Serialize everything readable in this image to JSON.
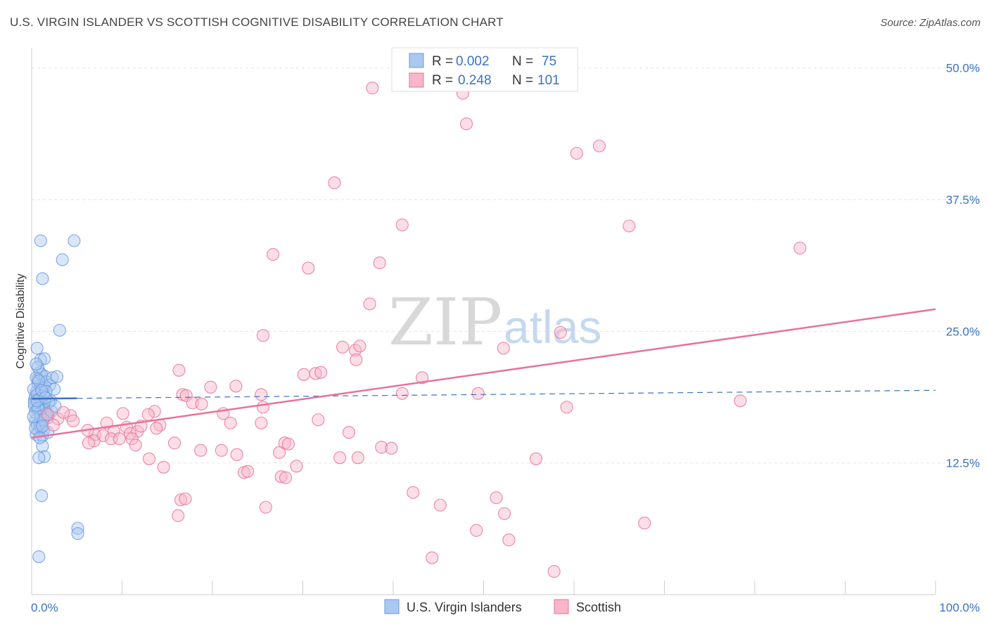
{
  "header": {
    "title": "U.S. VIRGIN ISLANDER VS SCOTTISH COGNITIVE DISABILITY CORRELATION CHART",
    "source": "Source: ZipAtlas.com"
  },
  "watermark": {
    "zip": "ZIP",
    "atlas": "atlas"
  },
  "legend_box": {
    "r_label": "R =",
    "n_label": "N =",
    "rows": [
      {
        "series": "U.S. Virgin Islanders",
        "r": "0.002",
        "n": "75",
        "color": "#aac8f0"
      },
      {
        "series": "Scottish",
        "r": "0.248",
        "n": "101",
        "color": "#f8b6c8"
      }
    ]
  },
  "bottom_legend": {
    "items": [
      {
        "label": "U.S. Virgin Islanders",
        "color": "#aac8f0"
      },
      {
        "label": "Scottish",
        "color": "#f8b6c8"
      }
    ]
  },
  "chart_data": {
    "type": "scatter",
    "title": "U.S. VIRGIN ISLANDER VS SCOTTISH COGNITIVE DISABILITY CORRELATION CHART",
    "xlabel": "",
    "ylabel": "Cognitive Disability",
    "xlim": [
      0,
      100
    ],
    "ylim": [
      0,
      51.25
    ],
    "x_tick_labels": [
      "0.0%",
      "100.0%"
    ],
    "y_ticks": [
      12.5,
      25.0,
      37.5,
      50.0
    ],
    "y_tick_labels": [
      "12.5%",
      "25.0%",
      "37.5%",
      "50.0%"
    ],
    "grid": true,
    "legend_position": "top-center",
    "series": [
      {
        "name": "U.S. Virgin Islanders",
        "color": "#6a9be0",
        "fill": "#aac8f0",
        "r": 0.002,
        "n": 75,
        "trend": {
          "x0": 0,
          "y0": 18.6,
          "x1": 100,
          "y1": 19.4,
          "solid_until": 5
        },
        "points": [
          [
            0.3,
            18.5
          ],
          [
            0.5,
            19.2
          ],
          [
            0.6,
            17.6
          ],
          [
            0.7,
            20.1
          ],
          [
            0.8,
            18.9
          ],
          [
            0.9,
            17.2
          ],
          [
            1.0,
            19.8
          ],
          [
            1.1,
            18.1
          ],
          [
            0.4,
            16.5
          ],
          [
            0.6,
            16.1
          ],
          [
            0.8,
            15.5
          ],
          [
            0.5,
            15.2
          ],
          [
            1.2,
            15.1
          ],
          [
            1.3,
            15.6
          ],
          [
            0.7,
            20.5
          ],
          [
            0.9,
            21.1
          ],
          [
            1.0,
            22.3
          ],
          [
            1.4,
            22.4
          ],
          [
            0.6,
            23.4
          ],
          [
            1.1,
            20.9
          ],
          [
            1.5,
            20.7
          ],
          [
            1.6,
            20.2
          ],
          [
            1.3,
            19.6
          ],
          [
            2.0,
            19.9
          ],
          [
            2.3,
            20.6
          ],
          [
            2.8,
            20.7
          ],
          [
            2.5,
            19.5
          ],
          [
            1.2,
            18.2
          ],
          [
            1.4,
            17.8
          ],
          [
            1.5,
            17.5
          ],
          [
            1.7,
            17.0
          ],
          [
            2.1,
            18.4
          ],
          [
            1.8,
            16.8
          ],
          [
            0.3,
            17.9
          ],
          [
            0.4,
            18.8
          ],
          [
            0.2,
            19.5
          ],
          [
            0.5,
            20.6
          ],
          [
            0.7,
            21.6
          ],
          [
            0.9,
            16.3
          ],
          [
            1.0,
            15.9
          ],
          [
            1.2,
            14.1
          ],
          [
            1.4,
            13.1
          ],
          [
            0.8,
            13.0
          ],
          [
            1.1,
            9.4
          ],
          [
            1.2,
            30.0
          ],
          [
            1.0,
            33.6
          ],
          [
            3.4,
            31.8
          ],
          [
            4.7,
            33.6
          ],
          [
            3.1,
            25.1
          ],
          [
            5.1,
            6.3
          ],
          [
            5.1,
            5.8
          ],
          [
            0.8,
            3.6
          ],
          [
            1.6,
            17.2
          ],
          [
            1.9,
            18.3
          ],
          [
            2.2,
            17.4
          ],
          [
            0.3,
            18.2
          ],
          [
            0.6,
            19.0
          ],
          [
            0.9,
            18.6
          ],
          [
            1.3,
            18.9
          ],
          [
            1.6,
            19.3
          ],
          [
            0.4,
            17.3
          ],
          [
            0.7,
            17.7
          ],
          [
            1.0,
            16.9
          ],
          [
            1.3,
            16.6
          ],
          [
            0.5,
            21.9
          ],
          [
            0.8,
            20.3
          ],
          [
            1.1,
            19.4
          ],
          [
            0.2,
            16.9
          ],
          [
            0.4,
            15.8
          ],
          [
            1.8,
            15.4
          ],
          [
            2.6,
            17.9
          ],
          [
            0.9,
            14.9
          ],
          [
            1.2,
            16.0
          ],
          [
            0.6,
            18.4
          ],
          [
            1.5,
            18.7
          ]
        ]
      },
      {
        "name": "Scottish",
        "color": "#e8729a",
        "fill": "#f8b6c8",
        "r": 0.248,
        "n": 101,
        "trend": {
          "x0": 0,
          "y0": 14.9,
          "x1": 100,
          "y1": 27.1
        },
        "points": [
          [
            37.7,
            48.1
          ],
          [
            47.7,
            47.6
          ],
          [
            53.9,
            50.0
          ],
          [
            48.1,
            44.7
          ],
          [
            60.3,
            41.9
          ],
          [
            62.8,
            42.6
          ],
          [
            33.5,
            39.1
          ],
          [
            41.0,
            35.1
          ],
          [
            66.1,
            35.0
          ],
          [
            85.0,
            32.9
          ],
          [
            26.7,
            32.3
          ],
          [
            38.5,
            31.5
          ],
          [
            30.6,
            31.0
          ],
          [
            37.4,
            27.6
          ],
          [
            58.5,
            24.9
          ],
          [
            25.6,
            24.6
          ],
          [
            34.4,
            23.5
          ],
          [
            35.8,
            23.2
          ],
          [
            36.3,
            23.6
          ],
          [
            52.2,
            23.4
          ],
          [
            35.9,
            22.3
          ],
          [
            16.3,
            21.3
          ],
          [
            30.1,
            20.9
          ],
          [
            31.4,
            21.0
          ],
          [
            32.0,
            21.1
          ],
          [
            43.2,
            20.6
          ],
          [
            19.8,
            19.7
          ],
          [
            22.6,
            19.8
          ],
          [
            16.7,
            19.0
          ],
          [
            17.1,
            18.9
          ],
          [
            25.4,
            19.0
          ],
          [
            41.0,
            19.1
          ],
          [
            49.4,
            19.1
          ],
          [
            78.4,
            18.4
          ],
          [
            17.8,
            18.2
          ],
          [
            18.8,
            18.1
          ],
          [
            25.6,
            17.8
          ],
          [
            59.2,
            17.8
          ],
          [
            13.6,
            17.4
          ],
          [
            10.1,
            17.2
          ],
          [
            21.2,
            17.2
          ],
          [
            12.9,
            17.1
          ],
          [
            4.3,
            17.0
          ],
          [
            4.6,
            16.5
          ],
          [
            8.3,
            16.3
          ],
          [
            10.5,
            15.9
          ],
          [
            11.7,
            15.5
          ],
          [
            12.1,
            16.0
          ],
          [
            14.2,
            16.1
          ],
          [
            22.0,
            16.3
          ],
          [
            25.4,
            16.3
          ],
          [
            31.7,
            16.6
          ],
          [
            13.8,
            15.8
          ],
          [
            9.1,
            15.5
          ],
          [
            10.9,
            15.3
          ],
          [
            7.0,
            15.2
          ],
          [
            6.2,
            15.6
          ],
          [
            7.9,
            15.1
          ],
          [
            8.8,
            14.8
          ],
          [
            9.7,
            14.8
          ],
          [
            11.1,
            14.8
          ],
          [
            35.1,
            15.4
          ],
          [
            6.9,
            14.6
          ],
          [
            6.3,
            14.4
          ],
          [
            11.5,
            14.2
          ],
          [
            15.8,
            14.4
          ],
          [
            18.7,
            13.7
          ],
          [
            21.0,
            13.7
          ],
          [
            28.0,
            14.4
          ],
          [
            28.4,
            14.3
          ],
          [
            38.7,
            14.0
          ],
          [
            39.8,
            13.9
          ],
          [
            22.7,
            13.3
          ],
          [
            27.4,
            13.5
          ],
          [
            34.1,
            13.0
          ],
          [
            36.1,
            13.0
          ],
          [
            55.8,
            12.9
          ],
          [
            13.0,
            12.9
          ],
          [
            14.6,
            12.1
          ],
          [
            29.3,
            12.2
          ],
          [
            23.5,
            11.6
          ],
          [
            23.9,
            11.7
          ],
          [
            27.6,
            11.2
          ],
          [
            28.1,
            11.1
          ],
          [
            42.2,
            9.7
          ],
          [
            51.4,
            9.2
          ],
          [
            16.5,
            9.0
          ],
          [
            17.0,
            9.1
          ],
          [
            25.9,
            8.3
          ],
          [
            45.2,
            8.5
          ],
          [
            52.3,
            7.7
          ],
          [
            16.2,
            7.5
          ],
          [
            67.8,
            6.8
          ],
          [
            49.2,
            6.1
          ],
          [
            52.8,
            5.2
          ],
          [
            44.3,
            3.5
          ],
          [
            57.8,
            2.2
          ],
          [
            1.8,
            17.1
          ],
          [
            2.9,
            16.7
          ],
          [
            3.5,
            17.3
          ],
          [
            2.4,
            16.1
          ]
        ]
      }
    ]
  }
}
